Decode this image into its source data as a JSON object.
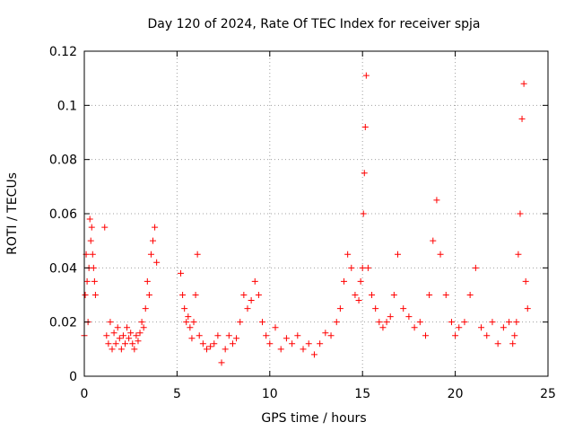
{
  "chart_data": {
    "type": "scatter",
    "title": "Day 120 of 2024, Rate Of TEC Index for receiver spja",
    "xlabel": "GPS time / hours",
    "ylabel": "ROTI / TECUs",
    "xlim": [
      0,
      25
    ],
    "ylim": [
      0,
      0.12
    ],
    "xticks": [
      0,
      5,
      10,
      15,
      20,
      25
    ],
    "xtick_labels": [
      "0",
      "5",
      "10",
      "15",
      "20",
      "25"
    ],
    "yticks": [
      0,
      0.02,
      0.04,
      0.06,
      0.08,
      0.1,
      0.12
    ],
    "ytick_labels": [
      "0",
      "0.02",
      "0.04",
      "0.06",
      "0.08",
      "0.1",
      "0.12"
    ],
    "grid": true,
    "marker": "plus",
    "color": "#ff0000",
    "series": [
      {
        "name": "ROTI",
        "x": [
          0.0,
          0.05,
          0.1,
          0.15,
          0.2,
          0.25,
          0.3,
          0.35,
          0.4,
          0.45,
          0.5,
          0.55,
          0.6,
          1.1,
          1.2,
          1.3,
          1.4,
          1.5,
          1.6,
          1.7,
          1.8,
          1.9,
          2.0,
          2.1,
          2.2,
          2.3,
          2.4,
          2.5,
          2.6,
          2.7,
          2.8,
          2.9,
          3.0,
          3.1,
          3.2,
          3.3,
          3.4,
          3.5,
          3.6,
          3.7,
          3.8,
          3.9,
          5.2,
          5.3,
          5.4,
          5.5,
          5.6,
          5.7,
          5.8,
          5.9,
          6.0,
          6.1,
          6.2,
          6.4,
          6.6,
          6.8,
          7.0,
          7.2,
          7.4,
          7.6,
          7.8,
          8.0,
          8.2,
          8.4,
          8.6,
          8.8,
          9.0,
          9.2,
          9.4,
          9.6,
          9.8,
          10.0,
          10.3,
          10.6,
          10.9,
          11.2,
          11.5,
          11.8,
          12.1,
          12.4,
          12.7,
          13.0,
          13.3,
          13.6,
          13.8,
          14.0,
          14.2,
          14.4,
          14.6,
          14.8,
          14.9,
          15.0,
          15.05,
          15.1,
          15.15,
          15.2,
          15.3,
          15.5,
          15.7,
          15.9,
          16.1,
          16.3,
          16.5,
          16.7,
          16.9,
          17.2,
          17.5,
          17.8,
          18.1,
          18.4,
          18.6,
          18.8,
          19.0,
          19.2,
          19.5,
          19.8,
          20.0,
          20.2,
          20.5,
          20.8,
          21.1,
          21.4,
          21.7,
          22.0,
          22.3,
          22.6,
          22.9,
          23.1,
          23.2,
          23.3,
          23.4,
          23.5,
          23.6,
          23.7,
          23.8,
          23.9
        ],
        "y": [
          0.015,
          0.03,
          0.045,
          0.035,
          0.02,
          0.04,
          0.058,
          0.05,
          0.055,
          0.045,
          0.04,
          0.035,
          0.03,
          0.055,
          0.015,
          0.012,
          0.02,
          0.01,
          0.016,
          0.012,
          0.018,
          0.014,
          0.01,
          0.015,
          0.012,
          0.018,
          0.014,
          0.016,
          0.012,
          0.01,
          0.015,
          0.013,
          0.016,
          0.02,
          0.018,
          0.025,
          0.035,
          0.03,
          0.045,
          0.05,
          0.055,
          0.042,
          0.038,
          0.03,
          0.025,
          0.02,
          0.022,
          0.018,
          0.014,
          0.02,
          0.03,
          0.045,
          0.015,
          0.012,
          0.01,
          0.011,
          0.012,
          0.015,
          0.005,
          0.01,
          0.015,
          0.012,
          0.014,
          0.02,
          0.03,
          0.025,
          0.028,
          0.035,
          0.03,
          0.02,
          0.015,
          0.012,
          0.018,
          0.01,
          0.014,
          0.012,
          0.015,
          0.01,
          0.012,
          0.008,
          0.012,
          0.016,
          0.015,
          0.02,
          0.025,
          0.035,
          0.045,
          0.04,
          0.03,
          0.028,
          0.035,
          0.04,
          0.06,
          0.075,
          0.092,
          0.111,
          0.04,
          0.03,
          0.025,
          0.02,
          0.018,
          0.02,
          0.022,
          0.03,
          0.045,
          0.025,
          0.022,
          0.018,
          0.02,
          0.015,
          0.03,
          0.05,
          0.065,
          0.045,
          0.03,
          0.02,
          0.015,
          0.018,
          0.02,
          0.03,
          0.04,
          0.018,
          0.015,
          0.02,
          0.012,
          0.018,
          0.02,
          0.012,
          0.015,
          0.02,
          0.045,
          0.06,
          0.095,
          0.108,
          0.035,
          0.025
        ]
      }
    ]
  }
}
